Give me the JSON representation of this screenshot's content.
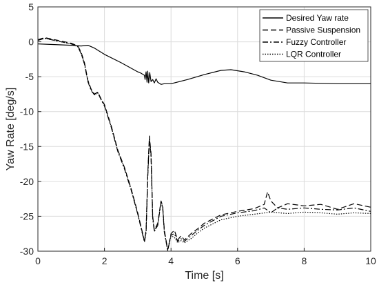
{
  "chart_data": {
    "type": "line",
    "title": "",
    "xlabel": "Time [s]",
    "ylabel": "Yaw Rate [deg/s]",
    "xlim": [
      0,
      10
    ],
    "ylim": [
      -30,
      5
    ],
    "xticks": [
      0,
      2,
      4,
      6,
      8,
      10
    ],
    "yticks": [
      5,
      0,
      -5,
      -10,
      -15,
      -20,
      -25,
      -30
    ],
    "grid": true,
    "legend": "top-right",
    "colors": {
      "line": "#000000",
      "grid": "#dcdcdc",
      "axis": "#262626"
    },
    "series": [
      {
        "name": "Desired Yaw rate",
        "dash": "solid",
        "x": [
          0,
          0.5,
          1.0,
          1.3,
          1.5,
          1.7,
          2.0,
          2.5,
          3.0,
          3.1,
          3.2,
          3.22,
          3.25,
          3.28,
          3.3,
          3.33,
          3.36,
          3.4,
          3.45,
          3.5,
          3.55,
          3.6,
          3.7,
          3.8,
          4.0,
          4.5,
          5.0,
          5.5,
          5.8,
          6.2,
          6.6,
          7.0,
          7.5,
          8.0,
          9.0,
          10.0
        ],
        "y": [
          -0.3,
          -0.4,
          -0.5,
          -0.6,
          -0.5,
          -0.9,
          -1.8,
          -3.0,
          -4.3,
          -4.5,
          -4.8,
          -5.4,
          -4.3,
          -5.8,
          -4.2,
          -5.9,
          -4.4,
          -5.7,
          -5.4,
          -5.9,
          -5.3,
          -5.8,
          -6.1,
          -6.0,
          -6.0,
          -5.4,
          -4.7,
          -4.1,
          -4.0,
          -4.3,
          -4.8,
          -5.5,
          -5.9,
          -5.9,
          -6.0,
          -6.0
        ]
      },
      {
        "name": "Passive Suspension",
        "dash": "dashed",
        "x": [
          0,
          0.2,
          0.4,
          0.6,
          0.8,
          1.0,
          1.2,
          1.3,
          1.4,
          1.5,
          1.6,
          1.7,
          1.8,
          1.9,
          2.0,
          2.2,
          2.4,
          2.6,
          2.8,
          3.0,
          3.1,
          3.2,
          3.25,
          3.3,
          3.35,
          3.4,
          3.45,
          3.5,
          3.6,
          3.7,
          3.75,
          3.8,
          3.9,
          4.0,
          4.1,
          4.2,
          4.3,
          4.4,
          4.6,
          4.8,
          5.0,
          5.5,
          6.0,
          6.5,
          6.8,
          6.9,
          7.0,
          7.2,
          7.5,
          8.0,
          8.5,
          9.0,
          9.5,
          10.0
        ],
        "y": [
          0.3,
          0.6,
          0.4,
          0.2,
          0.0,
          -0.2,
          -0.6,
          -1.5,
          -3.0,
          -5.5,
          -6.8,
          -7.5,
          -7.2,
          -8.2,
          -9.0,
          -12.0,
          -15.5,
          -18.0,
          -21.0,
          -24.5,
          -26.5,
          -28.5,
          -27.0,
          -19.0,
          -13.5,
          -16.0,
          -25.0,
          -27.0,
          -26.0,
          -22.8,
          -23.5,
          -27.0,
          -29.8,
          -27.5,
          -27.0,
          -28.4,
          -27.8,
          -28.4,
          -27.5,
          -26.8,
          -26.0,
          -24.8,
          -24.3,
          -23.9,
          -23.3,
          -21.5,
          -22.8,
          -23.8,
          -23.2,
          -23.5,
          -23.3,
          -24.0,
          -23.2,
          -23.7
        ]
      },
      {
        "name": "Fuzzy Controller",
        "dash": "dashdot",
        "x": [
          0,
          0.2,
          0.4,
          0.6,
          0.8,
          1.0,
          1.2,
          1.3,
          1.4,
          1.5,
          1.6,
          1.7,
          1.8,
          1.9,
          2.0,
          2.2,
          2.4,
          2.6,
          2.8,
          3.0,
          3.1,
          3.2,
          3.25,
          3.3,
          3.35,
          3.4,
          3.45,
          3.5,
          3.6,
          3.7,
          3.75,
          3.8,
          3.9,
          4.0,
          4.1,
          4.2,
          4.3,
          4.4,
          4.6,
          4.8,
          5.0,
          5.5,
          6.0,
          6.5,
          6.8,
          7.0,
          7.2,
          7.5,
          8.0,
          8.5,
          9.0,
          9.5,
          10.0
        ],
        "y": [
          0.2,
          0.5,
          0.3,
          0.1,
          -0.1,
          -0.3,
          -0.7,
          -1.7,
          -3.2,
          -5.7,
          -7.0,
          -7.6,
          -7.3,
          -8.3,
          -9.2,
          -12.2,
          -15.7,
          -18.2,
          -21.2,
          -24.7,
          -26.7,
          -28.7,
          -27.3,
          -19.5,
          -14.0,
          -16.5,
          -25.3,
          -27.2,
          -26.3,
          -23.0,
          -23.8,
          -27.3,
          -29.9,
          -27.7,
          -27.5,
          -28.6,
          -28.2,
          -28.6,
          -27.8,
          -27.0,
          -26.3,
          -25.0,
          -24.5,
          -24.2,
          -23.8,
          -24.5,
          -23.8,
          -24.0,
          -23.8,
          -24.0,
          -24.1,
          -23.8,
          -24.3
        ]
      },
      {
        "name": "LQR Controller",
        "dash": "dotted",
        "x": [
          0,
          0.2,
          0.4,
          0.6,
          0.8,
          1.0,
          1.2,
          1.3,
          1.4,
          1.5,
          1.6,
          1.7,
          1.8,
          1.9,
          2.0,
          2.2,
          2.4,
          2.6,
          2.8,
          3.0,
          3.1,
          3.2,
          3.25,
          3.3,
          3.35,
          3.4,
          3.45,
          3.5,
          3.6,
          3.7,
          3.75,
          3.8,
          3.9,
          4.0,
          4.1,
          4.2,
          4.3,
          4.4,
          4.6,
          4.8,
          5.0,
          5.5,
          6.0,
          6.5,
          7.0,
          7.5,
          8.0,
          8.5,
          9.0,
          9.5,
          10.0
        ],
        "y": [
          0.2,
          0.5,
          0.3,
          0.1,
          -0.1,
          -0.3,
          -0.7,
          -1.7,
          -3.2,
          -5.6,
          -6.9,
          -7.6,
          -7.3,
          -8.3,
          -9.1,
          -12.1,
          -15.6,
          -18.1,
          -21.1,
          -24.6,
          -26.6,
          -28.6,
          -27.2,
          -19.3,
          -13.8,
          -16.3,
          -25.2,
          -27.1,
          -26.2,
          -22.9,
          -23.7,
          -27.2,
          -29.9,
          -27.8,
          -28.0,
          -28.8,
          -28.5,
          -28.8,
          -28.2,
          -27.4,
          -26.7,
          -25.5,
          -25.0,
          -24.7,
          -24.4,
          -24.6,
          -24.4,
          -24.5,
          -24.7,
          -24.5,
          -24.6
        ]
      }
    ]
  }
}
